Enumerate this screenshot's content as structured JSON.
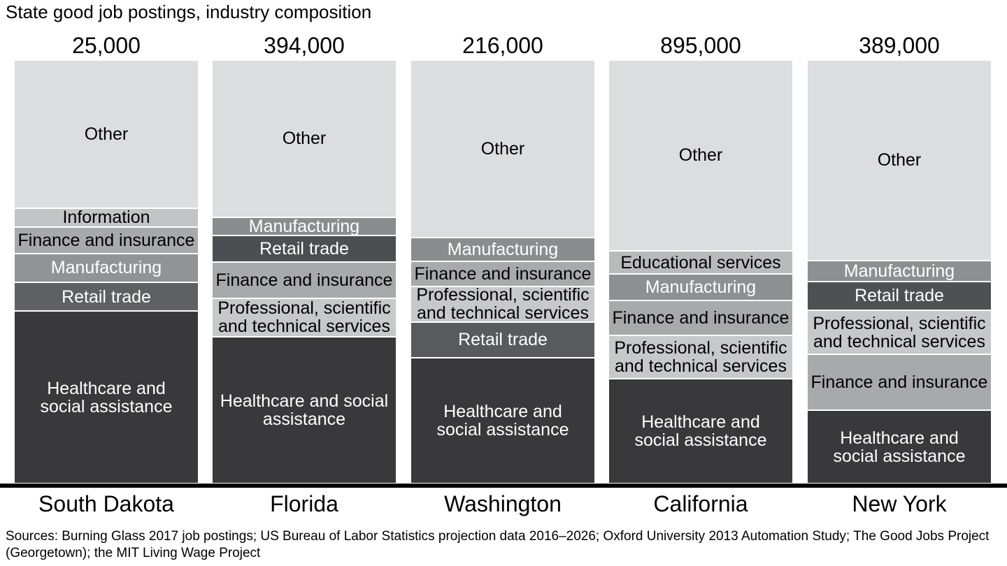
{
  "title": "State good job postings, industry composition",
  "source_note": "Sources: Burning Glass 2017 job postings; US Bureau of Labor Statistics projection data 2016–2026; Oxford University 2013 Automation Study; The Good Jobs Project (Georgetown); the MIT Living Wage Project",
  "chart_data": {
    "type": "bar",
    "subtype": "100pct-stacked-column",
    "title": "State good job postings, industry composition",
    "note": "All bars drawn equal height; segment values are estimated share (%) of each state's good job postings; total postings shown above each bar",
    "legend_position": "none (labels inside segments)",
    "grid": false,
    "categories": [
      "South Dakota",
      "Florida",
      "Washington",
      "California",
      "New York"
    ],
    "totals": [
      "25,000",
      "394,000",
      "216,000",
      "895,000",
      "389,000"
    ],
    "states": [
      {
        "name": "South Dakota",
        "total_label": "25,000",
        "segments": [
          {
            "industry": "Other",
            "label": "Other",
            "share_pct": 35.3,
            "color": "#dcddde",
            "text_color": "#000000"
          },
          {
            "industry": "Information",
            "label": "Information",
            "share_pct": 4.2,
            "color": "#c3c4c6",
            "text_color": "#000000"
          },
          {
            "industry": "Finance and insurance",
            "label": "Finance and insurance",
            "share_pct": 6.1,
            "color": "#a8a9ab",
            "text_color": "#000000"
          },
          {
            "industry": "Manufacturing",
            "label": "Manufacturing",
            "share_pct": 6.6,
            "color": "#929396",
            "text_color": "#ffffff"
          },
          {
            "industry": "Retail trade",
            "label": "Retail trade",
            "share_pct": 6.6,
            "color": "#5f6063",
            "text_color": "#ffffff"
          },
          {
            "industry": "Healthcare and social assistance",
            "label": "Healthcare and\nsocial assistance",
            "share_pct": 41.2,
            "color": "#39393b",
            "text_color": "#ffffff"
          }
        ]
      },
      {
        "name": "Florida",
        "total_label": "394,000",
        "segments": [
          {
            "industry": "Other",
            "label": "Other",
            "share_pct": 37.5,
            "color": "#dcddde",
            "text_color": "#000000"
          },
          {
            "industry": "Manufacturing",
            "label": "Manufacturing",
            "share_pct": 4.1,
            "color": "#8b8c8f",
            "text_color": "#ffffff"
          },
          {
            "industry": "Retail trade",
            "label": "Retail trade",
            "share_pct": 6.1,
            "color": "#4d4e51",
            "text_color": "#ffffff"
          },
          {
            "industry": "Finance and insurance",
            "label": "Finance and insurance",
            "share_pct": 8.3,
            "color": "#a8a9ab",
            "text_color": "#000000"
          },
          {
            "industry": "Professional, scientific and technical services",
            "label": "Professional, scientific\nand technical services",
            "share_pct": 9.0,
            "color": "#c7c8ca",
            "text_color": "#000000"
          },
          {
            "industry": "Healthcare and social assistance",
            "label": "Healthcare and social\nassistance",
            "share_pct": 35.0,
            "color": "#39393b",
            "text_color": "#ffffff"
          }
        ]
      },
      {
        "name": "Washington",
        "total_label": "216,000",
        "segments": [
          {
            "industry": "Other",
            "label": "Other",
            "share_pct": 42.5,
            "color": "#dcddde",
            "text_color": "#000000"
          },
          {
            "industry": "Manufacturing",
            "label": "Manufacturing",
            "share_pct": 5.3,
            "color": "#8b8c8f",
            "text_color": "#ffffff"
          },
          {
            "industry": "Finance and insurance",
            "label": "Finance and insurance",
            "share_pct": 5.8,
            "color": "#a8a9ab",
            "text_color": "#000000"
          },
          {
            "industry": "Professional, scientific and technical services",
            "label": "Professional, scientific\nand technical services",
            "share_pct": 8.1,
            "color": "#c7c8ca",
            "text_color": "#000000"
          },
          {
            "industry": "Retail trade",
            "label": "Retail trade",
            "share_pct": 8.3,
            "color": "#595a5d",
            "text_color": "#ffffff"
          },
          {
            "industry": "Healthcare and social assistance",
            "label": "Healthcare and\nsocial assistance",
            "share_pct": 30.0,
            "color": "#39393b",
            "text_color": "#ffffff"
          }
        ]
      },
      {
        "name": "California",
        "total_label": "895,000",
        "segments": [
          {
            "industry": "Other",
            "label": "Other",
            "share_pct": 45.6,
            "color": "#dcddde",
            "text_color": "#000000"
          },
          {
            "industry": "Educational services",
            "label": "Educational services",
            "share_pct": 5.3,
            "color": "#b9babc",
            "text_color": "#000000"
          },
          {
            "industry": "Manufacturing",
            "label": "Manufacturing",
            "share_pct": 6.0,
            "color": "#8e8f92",
            "text_color": "#ffffff"
          },
          {
            "industry": "Finance and insurance",
            "label": "Finance and insurance",
            "share_pct": 8.1,
            "color": "#a8a9ab",
            "text_color": "#000000"
          },
          {
            "industry": "Professional, scientific and technical services",
            "label": "Professional, scientific\nand technical services",
            "share_pct": 10.1,
            "color": "#c7c8ca",
            "text_color": "#000000"
          },
          {
            "industry": "Healthcare and social assistance",
            "label": "Healthcare and\nsocial assistance",
            "share_pct": 24.9,
            "color": "#39393b",
            "text_color": "#ffffff"
          }
        ]
      },
      {
        "name": "New York",
        "total_label": "389,000",
        "segments": [
          {
            "industry": "Other",
            "label": "Other",
            "share_pct": 47.9,
            "color": "#dcddde",
            "text_color": "#000000"
          },
          {
            "industry": "Manufacturing",
            "label": "Manufacturing",
            "share_pct": 4.8,
            "color": "#8e8f92",
            "text_color": "#ffffff"
          },
          {
            "industry": "Retail trade",
            "label": "Retail trade",
            "share_pct": 6.5,
            "color": "#4f5053",
            "text_color": "#ffffff"
          },
          {
            "industry": "Professional, scientific and technical services",
            "label": "Professional, scientific\nand technical services",
            "share_pct": 10.4,
            "color": "#c7c8ca",
            "text_color": "#000000"
          },
          {
            "industry": "Finance and insurance",
            "label": "Finance and insurance",
            "share_pct": 13.1,
            "color": "#a8a9ab",
            "text_color": "#000000"
          },
          {
            "industry": "Healthcare and social assistance",
            "label": "Healthcare and\nsocial assistance",
            "share_pct": 17.3,
            "color": "#39393b",
            "text_color": "#ffffff"
          }
        ]
      }
    ]
  }
}
